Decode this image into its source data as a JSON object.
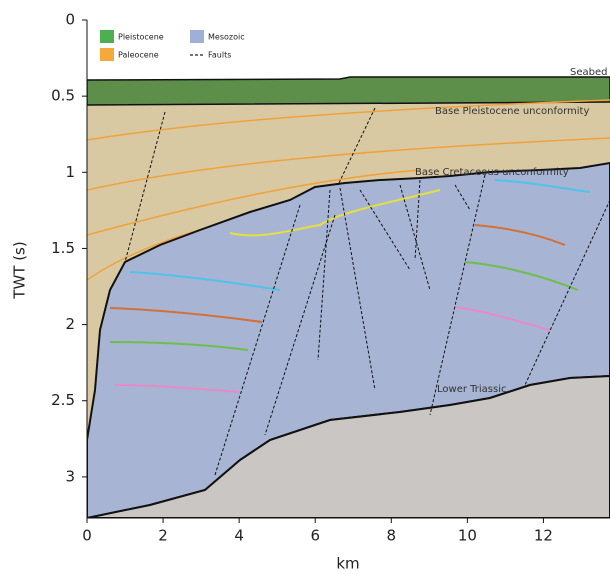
{
  "chart_data": {
    "type": "seismic-section",
    "xlabel": "km",
    "ylabel": "TWT (s)",
    "xlim": [
      0,
      13.75
    ],
    "ylim": [
      0,
      3.27
    ],
    "y_inverted": true,
    "xticks": [
      0,
      2,
      4,
      6,
      8,
      10,
      12
    ],
    "yticks": [
      0,
      0.5,
      1,
      1.5,
      2,
      2.5,
      3
    ],
    "legend": [
      {
        "name": "Pleistocene",
        "color": "#4caf50"
      },
      {
        "name": "Paleocene",
        "color": "#f4a93a"
      },
      {
        "name": "Mesozoic",
        "color": "#9fb0d6"
      },
      {
        "name": "Faults",
        "color": "#222222"
      }
    ],
    "annotations": [
      "Seabed",
      "Base Pleistocene unconformity",
      "Base Cretaceous unconformity",
      "Lower Triassic"
    ]
  }
}
